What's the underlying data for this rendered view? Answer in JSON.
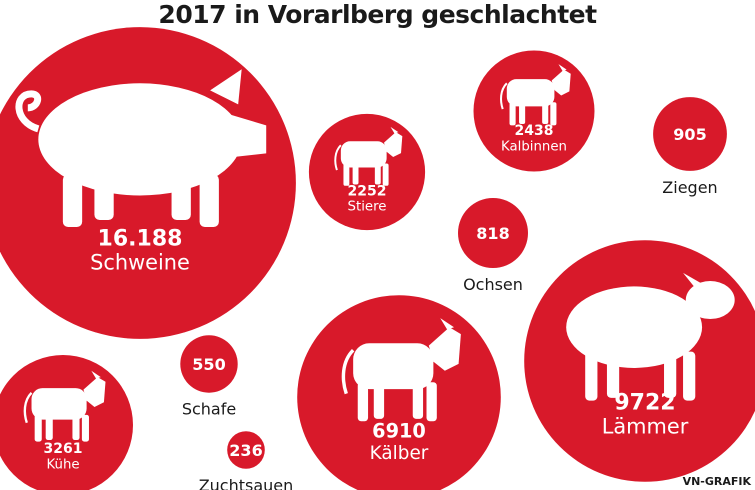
{
  "chart_data": {
    "type": "bubble",
    "title": "2017 in Vorarlberg geschlachtet",
    "bubble_color": "#d8192a",
    "items": [
      {
        "id": "schweine",
        "name": "Schweine",
        "value": 16188,
        "value_label": "16.188",
        "icon": "pig-icon",
        "label_position": "inside"
      },
      {
        "id": "stiere",
        "name": "Stiere",
        "value": 2252,
        "value_label": "2252",
        "icon": "bull-icon",
        "label_position": "inside"
      },
      {
        "id": "kalbinnen",
        "name": "Kalbinnen",
        "value": 2438,
        "value_label": "2438",
        "icon": "heifer-icon",
        "label_position": "inside"
      },
      {
        "id": "ziegen",
        "name": "Ziegen",
        "value": 905,
        "value_label": "905",
        "icon": "",
        "label_position": "below"
      },
      {
        "id": "ochsen",
        "name": "Ochsen",
        "value": 818,
        "value_label": "818",
        "icon": "",
        "label_position": "below"
      },
      {
        "id": "schafe",
        "name": "Schafe",
        "value": 550,
        "value_label": "550",
        "icon": "",
        "label_position": "below"
      },
      {
        "id": "zuchtsauen",
        "name": "Zuchtsauen",
        "value": 236,
        "value_label": "236",
        "icon": "",
        "label_position": "below"
      },
      {
        "id": "kuehe",
        "name": "Kühe",
        "value": 3261,
        "value_label": "3261",
        "icon": "cow-icon",
        "label_position": "inside"
      },
      {
        "id": "kaelber",
        "name": "Kälber",
        "value": 6910,
        "value_label": "6910",
        "icon": "calf-icon",
        "label_position": "inside"
      },
      {
        "id": "laemmer",
        "name": "Lämmer",
        "value": 9722,
        "value_label": "9722",
        "icon": "sheep-icon",
        "label_position": "inside"
      }
    ]
  },
  "source": "VN-GRAFIK"
}
